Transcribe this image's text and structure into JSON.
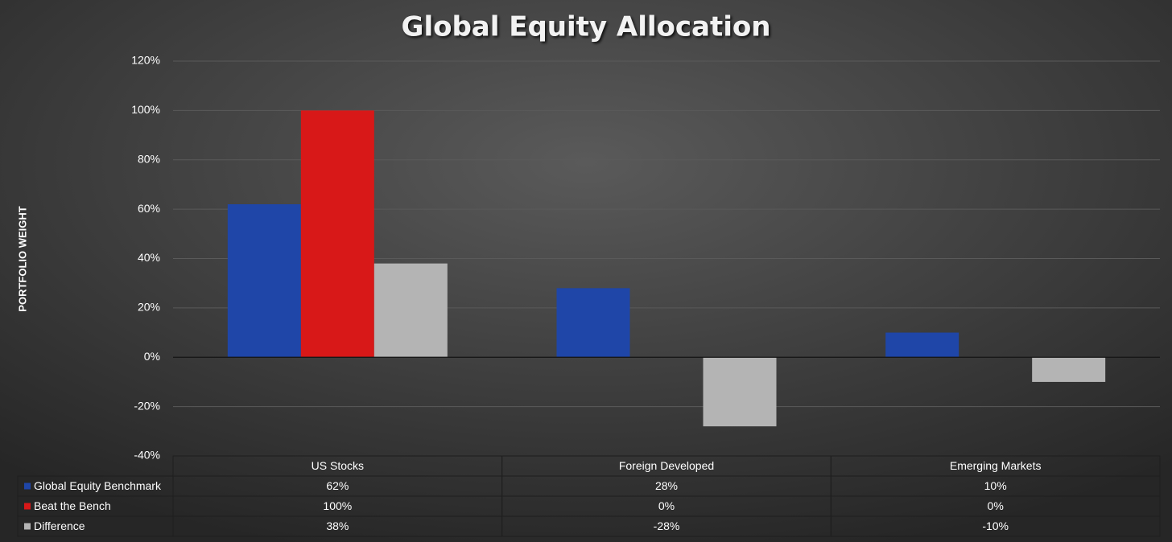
{
  "chart_data": {
    "type": "bar",
    "title": "Global Equity Allocation",
    "y_label": "PORTFOLIO WEIGHT",
    "categories": [
      "US Stocks",
      "Foreign Developed",
      "Emerging Markets"
    ],
    "series": [
      {
        "name": "Global Equity Benchmark",
        "color": "#1f46a8",
        "values": [
          62,
          28,
          10
        ],
        "value_labels": [
          "62%",
          "28%",
          "10%"
        ]
      },
      {
        "name": "Beat the Bench",
        "color": "#d81818",
        "values": [
          100,
          0,
          0
        ],
        "value_labels": [
          "100%",
          "0%",
          "0%"
        ]
      },
      {
        "name": "Difference",
        "color": "#b4b4b4",
        "values": [
          38,
          -28,
          -10
        ],
        "value_labels": [
          "38%",
          "-28%",
          "-10%"
        ]
      }
    ],
    "ylim": [
      -40,
      120
    ],
    "yticks": [
      {
        "value": -40,
        "label": "-40%"
      },
      {
        "value": -20,
        "label": "-20%"
      },
      {
        "value": 0,
        "label": "0%"
      },
      {
        "value": 20,
        "label": "20%"
      },
      {
        "value": 40,
        "label": "40%"
      },
      {
        "value": 60,
        "label": "60%"
      },
      {
        "value": 80,
        "label": "80%"
      },
      {
        "value": 100,
        "label": "100%"
      },
      {
        "value": 120,
        "label": "120%"
      }
    ],
    "grid": true
  }
}
